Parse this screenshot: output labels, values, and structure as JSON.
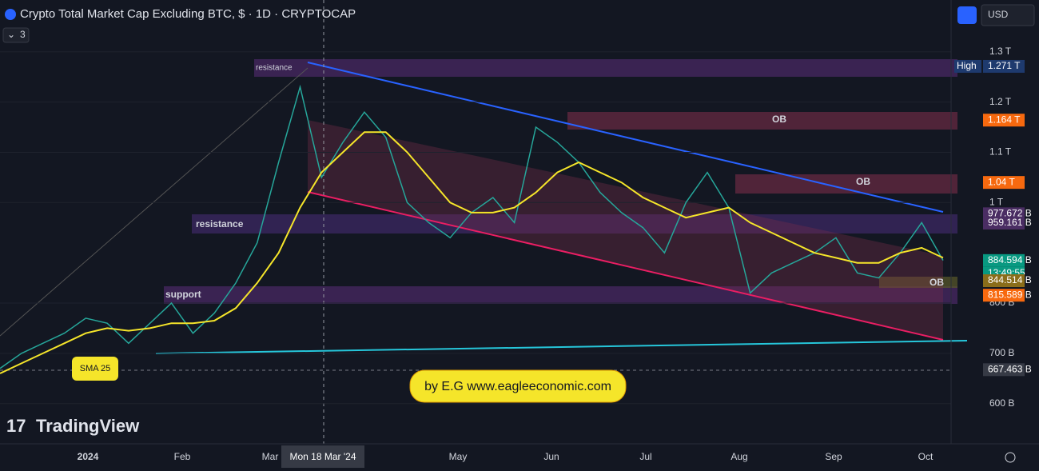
{
  "header": {
    "title": "Crypto Total Market Cap Excluding BTC, $ · 1D · CRYPTOCAP",
    "currency": "USD",
    "indicator_count": "3"
  },
  "price_axis": {
    "ylim": [
      520,
      1403
    ],
    "ticks": [
      {
        "value": 1300,
        "label": "1.3 T"
      },
      {
        "value": 1200,
        "label": "1.2 T"
      },
      {
        "value": 1100,
        "label": "1.1 T"
      },
      {
        "value": 1000,
        "label": "1 T"
      },
      {
        "value": 800,
        "label": "800 B"
      },
      {
        "value": 700,
        "label": "700 B"
      },
      {
        "value": 600,
        "label": "600 B"
      }
    ]
  },
  "price_tags": [
    {
      "value": 1271,
      "label": "1.271 T",
      "name": "High",
      "color": "#1e3a6e"
    },
    {
      "value": 1164,
      "label": "1.164 T",
      "color": "#f7690f"
    },
    {
      "value": 1040,
      "label": "1.04 T",
      "color": "#f7690f"
    },
    {
      "value": 977.672,
      "label": "977.672 B",
      "color": "#4a2d63"
    },
    {
      "value": 959.161,
      "label": "959.161 B",
      "color": "#4a2d63"
    },
    {
      "value": 884.594,
      "label": "884.594 B",
      "time": "13:49:55",
      "color": "#089981"
    },
    {
      "value": 844.514,
      "label": "844.514 B",
      "color": "#8a6d1a"
    },
    {
      "value": 815.589,
      "label": "815.589 B",
      "color": "#f7690f"
    },
    {
      "value": 667.463,
      "label": "667.463 B",
      "color": "#363a45"
    }
  ],
  "time_axis": {
    "labels": [
      "2024",
      "Feb",
      "Mar",
      "May",
      "Jun",
      "Jul",
      "Aug",
      "Sep",
      "Oct"
    ],
    "crosshair": "Mon 18 Mar '24"
  },
  "price_line": {
    "values": [
      670,
      700,
      720,
      740,
      770,
      760,
      720,
      760,
      800,
      740,
      780,
      840,
      920,
      1080,
      1230,
      1050,
      1120,
      1180,
      1130,
      1000,
      960,
      930,
      980,
      1010,
      960,
      1150,
      1120,
      1080,
      1020,
      980,
      950,
      900,
      1000,
      1060,
      990,
      820,
      860,
      880,
      900,
      930,
      860,
      850,
      900,
      960,
      885
    ]
  },
  "sma_line": {
    "label": "SMA 25",
    "values": [
      660,
      680,
      700,
      720,
      740,
      750,
      745,
      750,
      760,
      760,
      765,
      790,
      840,
      900,
      990,
      1060,
      1100,
      1140,
      1140,
      1100,
      1050,
      1000,
      980,
      980,
      990,
      1020,
      1060,
      1080,
      1060,
      1040,
      1010,
      990,
      970,
      980,
      990,
      960,
      940,
      920,
      900,
      890,
      880,
      880,
      900,
      910,
      890
    ]
  },
  "annotations": {
    "resistance_top": "resistance",
    "resistance_mid": "resistance",
    "support": "support",
    "ob_1": "OB",
    "ob_2": "OB",
    "ob_3": "OB",
    "credit": "by E.G www.eagleeconomic.com",
    "brand": "TradingView"
  }
}
